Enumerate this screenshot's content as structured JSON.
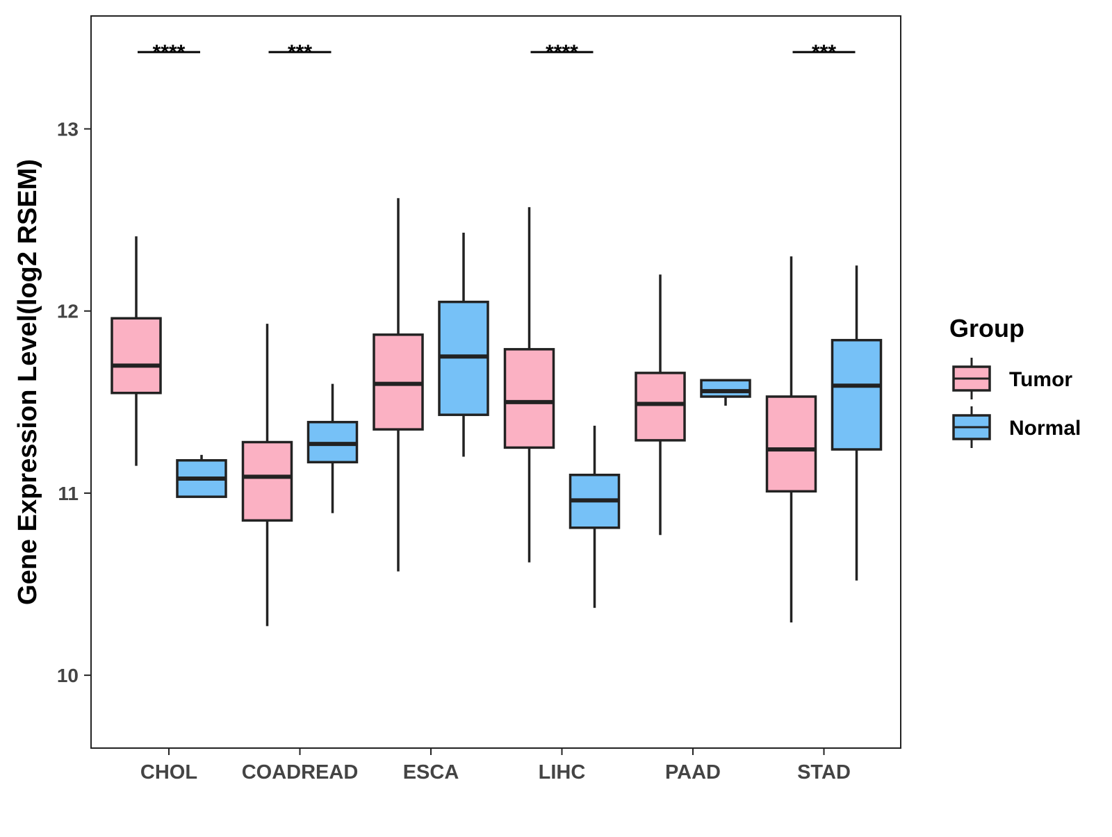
{
  "chart_data": {
    "type": "boxplot",
    "ylabel": "Gene Expression Level(log2 RSEM)",
    "xlabel": "",
    "ylim": [
      9.6,
      13.62
    ],
    "yticks": [
      10,
      11,
      12,
      13
    ],
    "categories": [
      "CHOL",
      "COADREAD",
      "ESCA",
      "LIHC",
      "PAAD",
      "STAD"
    ],
    "legend": {
      "title": "Group",
      "position": "right"
    },
    "series": [
      {
        "name": "Tumor",
        "color": "#fbb1c3",
        "boxes": [
          {
            "category": "CHOL",
            "min": 11.15,
            "q1": 11.55,
            "median": 11.7,
            "q3": 11.96,
            "max": 12.41
          },
          {
            "category": "COADREAD",
            "min": 10.27,
            "q1": 10.85,
            "median": 11.09,
            "q3": 11.28,
            "max": 11.93
          },
          {
            "category": "ESCA",
            "min": 10.57,
            "q1": 11.35,
            "median": 11.6,
            "q3": 11.87,
            "max": 12.62
          },
          {
            "category": "LIHC",
            "min": 10.62,
            "q1": 11.25,
            "median": 11.5,
            "q3": 11.79,
            "max": 12.57
          },
          {
            "category": "PAAD",
            "min": 10.77,
            "q1": 11.29,
            "median": 11.49,
            "q3": 11.66,
            "max": 12.2
          },
          {
            "category": "STAD",
            "min": 10.29,
            "q1": 11.01,
            "median": 11.24,
            "q3": 11.53,
            "max": 12.3
          }
        ]
      },
      {
        "name": "Normal",
        "color": "#76c1f7",
        "boxes": [
          {
            "category": "CHOL",
            "min": 10.98,
            "q1": 10.98,
            "median": 11.08,
            "q3": 11.18,
            "max": 11.21
          },
          {
            "category": "COADREAD",
            "min": 10.89,
            "q1": 11.17,
            "median": 11.27,
            "q3": 11.39,
            "max": 11.6
          },
          {
            "category": "ESCA",
            "min": 11.2,
            "q1": 11.43,
            "median": 11.75,
            "q3": 12.05,
            "max": 12.43
          },
          {
            "category": "LIHC",
            "min": 10.37,
            "q1": 10.81,
            "median": 10.96,
            "q3": 11.1,
            "max": 11.37
          },
          {
            "category": "PAAD",
            "min": 11.48,
            "q1": 11.53,
            "median": 11.56,
            "q3": 11.62,
            "max": 11.62
          },
          {
            "category": "STAD",
            "min": 10.52,
            "q1": 11.24,
            "median": 11.59,
            "q3": 11.84,
            "max": 12.25
          }
        ]
      }
    ],
    "annotations": [
      {
        "category": "CHOL",
        "label": "****"
      },
      {
        "category": "COADREAD",
        "label": "***"
      },
      {
        "category": "LIHC",
        "label": "****"
      },
      {
        "category": "STAD",
        "label": "***"
      }
    ]
  }
}
